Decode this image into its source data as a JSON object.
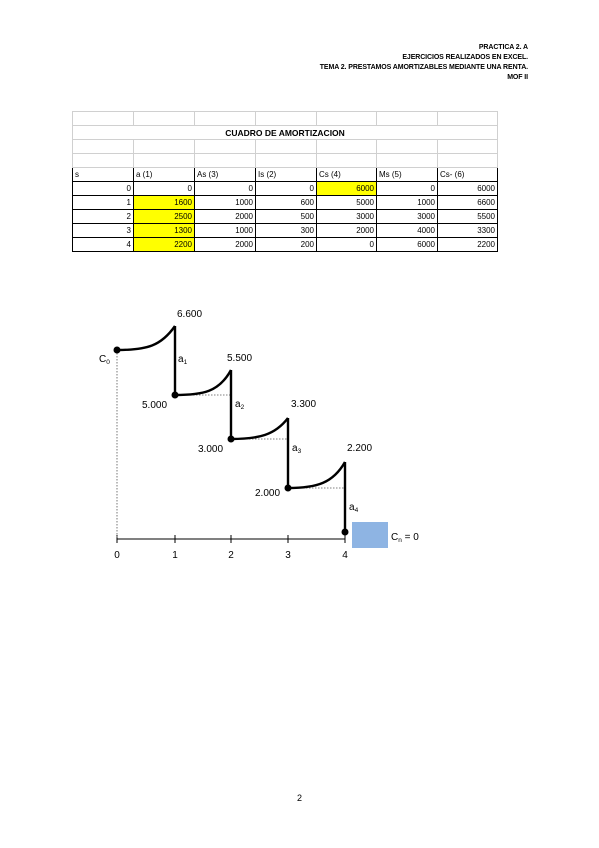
{
  "header": {
    "line1": "PRACTICA 2. A",
    "line2": "EJERCICIOS REALIZADOS EN EXCEL.",
    "line3": "TEMA 2. PRESTAMOS AMORTIZABLES MEDIANTE UNA RENTA.",
    "line4": "MOF II"
  },
  "table": {
    "title": "CUADRO DE AMORTIZACION",
    "columns": [
      "s",
      "a (1)",
      "As (3)",
      "Is (2)",
      "Cs (4)",
      "Ms (5)",
      "Cs- (6)"
    ],
    "rows": [
      [
        "0",
        "0",
        "0",
        "0",
        "6000",
        "0",
        "6000"
      ],
      [
        "1",
        "1600",
        "1000",
        "600",
        "5000",
        "1000",
        "6600"
      ],
      [
        "2",
        "2500",
        "2000",
        "500",
        "3000",
        "3000",
        "5500"
      ],
      [
        "3",
        "1300",
        "1000",
        "300",
        "2000",
        "4000",
        "3300"
      ],
      [
        "4",
        "2200",
        "2000",
        "200",
        "0",
        "6000",
        "2200"
      ]
    ],
    "highlight_color": "#ffff00"
  },
  "diagram": {
    "peak_labels": [
      "6.600",
      "5.500",
      "3.300",
      "2.200"
    ],
    "trough_labels": [
      "5.000",
      "3.000",
      "2.000"
    ],
    "payment_labels": [
      {
        "base": "a",
        "sub": "1"
      },
      {
        "base": "a",
        "sub": "2"
      },
      {
        "base": "a",
        "sub": "3"
      },
      {
        "base": "a",
        "sub": "4"
      }
    ],
    "c0": {
      "base": "C",
      "sub": "0"
    },
    "cn": {
      "base": "C",
      "sub": "n",
      "rest": " = 0"
    },
    "axis_ticks": [
      "0",
      "1",
      "2",
      "3",
      "4"
    ],
    "box_color": "#8eb4e3"
  },
  "page_number": "2"
}
